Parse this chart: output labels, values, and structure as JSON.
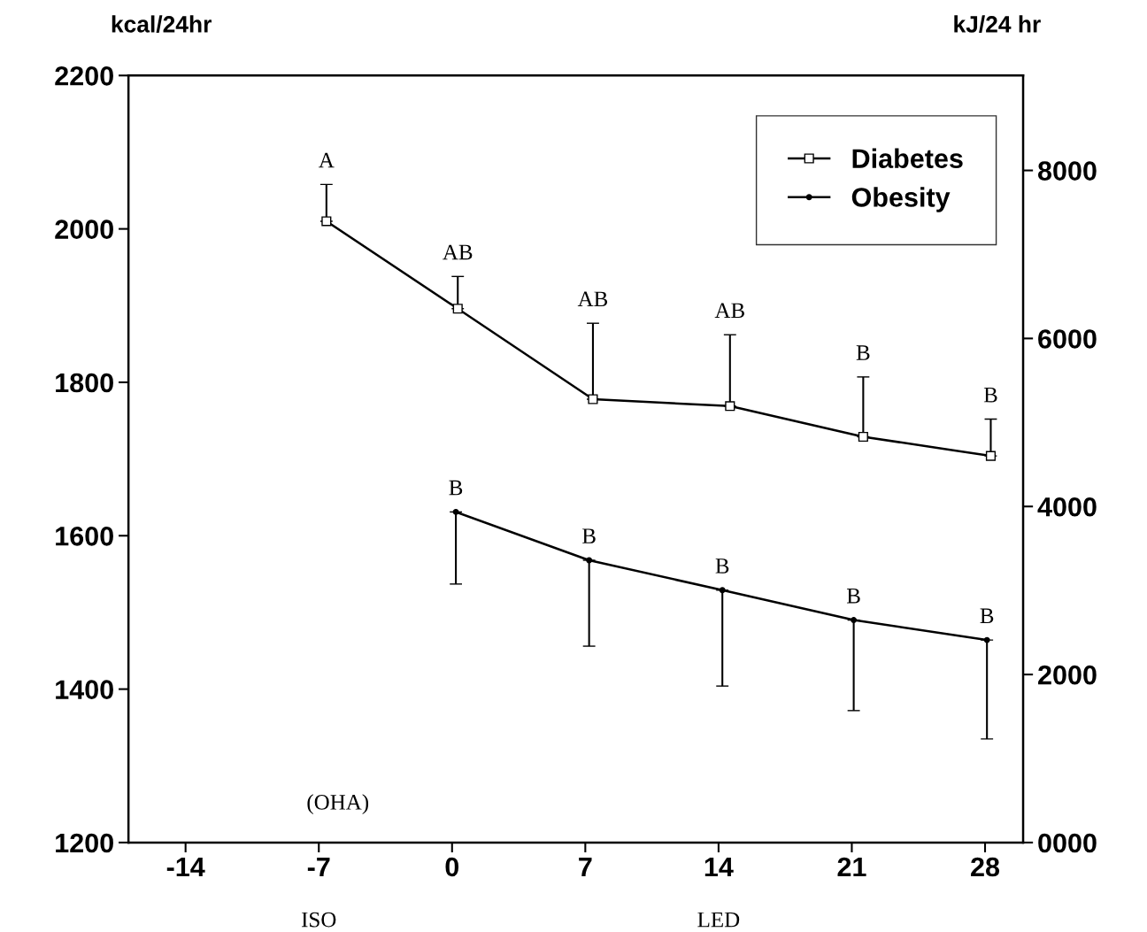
{
  "chart_data": {
    "type": "line",
    "ylabel": "kcal/24hr",
    "y2label": "kJ/24 hr",
    "xlim": [
      -17,
      30
    ],
    "xticks": [
      -14,
      -7,
      0,
      7,
      14,
      21,
      28
    ],
    "ylim": [
      1200,
      2200
    ],
    "yticks": [
      1200,
      1400,
      1600,
      1800,
      2000,
      2200
    ],
    "y2lim": [
      0,
      9130
    ],
    "y2ticks": [
      {
        "value": 0,
        "label": "0000"
      },
      2000,
      4000,
      6000,
      8000
    ],
    "grid": false,
    "legend": "top right",
    "line_style": "solid",
    "series": [
      {
        "name": "Diabetes",
        "color": "#000000",
        "marker": "square",
        "x": [
          -6.6,
          0.3,
          7.4,
          14.6,
          21.6,
          28.3
        ],
        "values": [
          2010,
          1896,
          1778,
          1769,
          1729,
          1704
        ],
        "errors": [
          [
            2010,
            2058
          ],
          [
            1896,
            1938
          ],
          [
            1778,
            1877
          ],
          [
            1769,
            1862
          ],
          [
            1729,
            1807
          ],
          [
            1704,
            1752
          ]
        ]
      },
      {
        "name": "Obesity",
        "color": "#000000",
        "marker": "circle",
        "x": [
          0.2,
          7.2,
          14.2,
          21.1,
          28.1
        ],
        "values": [
          1631,
          1568,
          1529,
          1490,
          1464
        ],
        "errors": [
          [
            1537,
            1631
          ],
          [
            1456,
            1568
          ],
          [
            1404,
            1529
          ],
          [
            1372,
            1490
          ],
          [
            1335,
            1464
          ]
        ]
      }
    ],
    "annotations": [
      "A",
      "AB",
      "AB",
      "AB",
      "B",
      "B",
      {
        "text": "B",
        "x": 0.2,
        "y": 1631
      },
      {
        "text": "B",
        "x": 7.2,
        "y": 1568
      },
      {
        "text": "B",
        "x": 14.2,
        "y": 1529
      },
      {
        "text": "B",
        "x": 21.1,
        "y": 1490
      },
      {
        "text": "B",
        "x": 28.1,
        "y": 1464
      },
      "(OHA)",
      "ISO",
      "LED"
    ]
  }
}
